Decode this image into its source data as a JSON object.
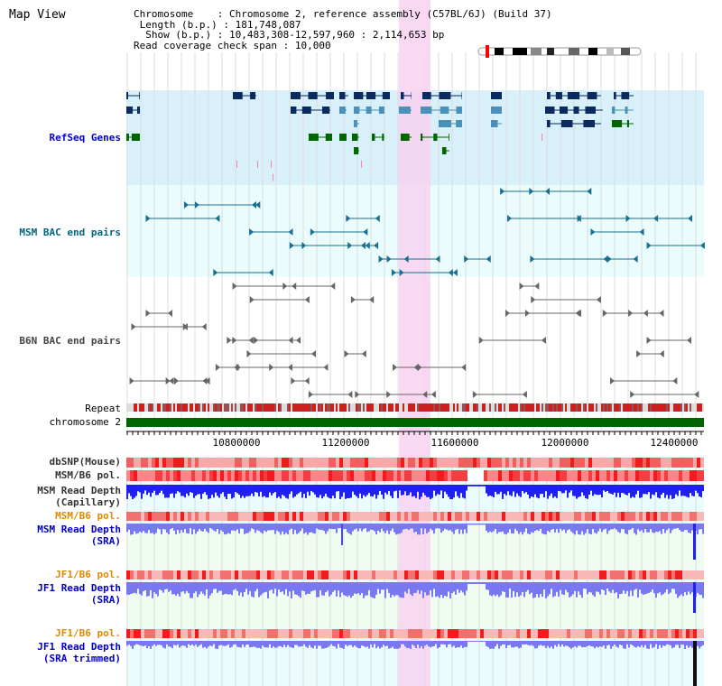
{
  "app": {
    "title": "Map View"
  },
  "header": {
    "chromosome_key": "Chromosome",
    "chromosome_value": "Chromosome 2, reference assembly (C57BL/6J) (Build 37)",
    "length_key": "Length (b.p.)",
    "length_value": "181,748,087",
    "show_key": "Show (b.p.)",
    "show_value": "10,483,308-12,597,960 : 2,114,653 bp",
    "span_key": "Read coverage check span",
    "span_value": "10,000"
  },
  "tracks": {
    "refseq": "RefSeq Genes",
    "msm_bac": "MSM BAC end pairs",
    "b6n_bac": "B6N BAC end pairs",
    "repeat": "Repeat",
    "chromosome": "chromosome 2",
    "dbsnp": "dbSNP(Mouse)",
    "msm_b6_pol": "MSM/B6 pol.",
    "msm_depth_cap_1": "MSM Read Depth",
    "msm_depth_cap_2": "(Capillary)",
    "msm_b6_pol_2": "MSM/B6 pol.",
    "msm_depth_sra_1": "MSM Read Depth",
    "msm_depth_sra_2": "(SRA)",
    "jf1_b6_pol": "JF1/B6 pol.",
    "jf1_depth_sra_1": "JF1 Read Depth",
    "jf1_depth_sra_2": "(SRA)",
    "jf1_b6_pol_2": "JF1/B6 pol.",
    "jf1_depth_trim_1": "JF1 Read Depth",
    "jf1_depth_trim_2": "(SRA trimmed)"
  },
  "axis": {
    "ticks": [
      "10800000",
      "11200000",
      "11600000",
      "12000000",
      "12400000"
    ]
  },
  "colors": {
    "refseq_label": "#0000cc",
    "msm_bac_label": "#006680",
    "b6n_bac_label": "#444444",
    "pol_label": "#e08a00",
    "depth_label": "#0000cc",
    "highlight": "#f8d2f0",
    "chromosome_bar": "#006600"
  }
}
